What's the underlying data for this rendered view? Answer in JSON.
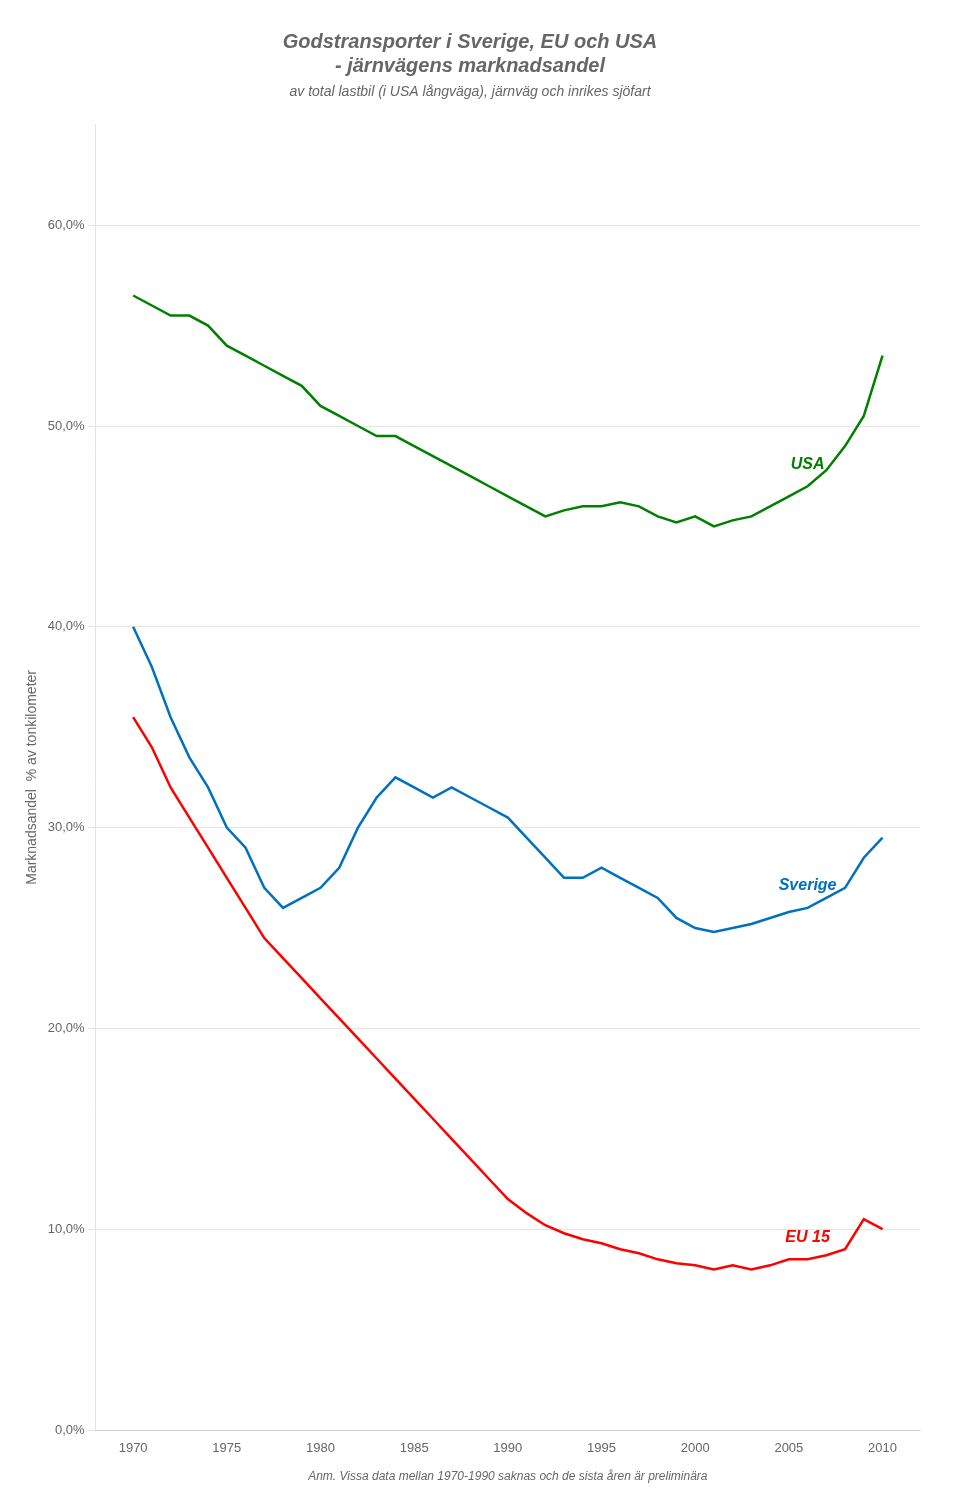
{
  "chart_data": {
    "type": "line",
    "title": [
      "Godstransporter i Sverige, EU och USA",
      "- järnvägens marknadsandel"
    ],
    "subtitle": "av total lastbil (i USA långväga), järnväg och inrikes sjöfart",
    "ylabel": "Marknadsandel  % av tonkilometer",
    "xlabel": "Anm. Vissa data mellan 1970-1990 saknas och de sista åren är preliminära",
    "x": [
      1970,
      1971,
      1972,
      1973,
      1974,
      1975,
      1976,
      1977,
      1978,
      1979,
      1980,
      1981,
      1982,
      1983,
      1984,
      1985,
      1986,
      1987,
      1988,
      1989,
      1990,
      1991,
      1992,
      1993,
      1994,
      1995,
      1996,
      1997,
      1998,
      1999,
      2000,
      2001,
      2002,
      2003,
      2004,
      2005,
      2006,
      2007,
      2008,
      2009,
      2010
    ],
    "series": [
      {
        "name": "USA",
        "color": "#008000",
        "values": [
          0.565,
          0.56,
          0.555,
          0.555,
          0.55,
          0.54,
          0.535,
          0.53,
          0.525,
          0.52,
          0.51,
          0.505,
          0.5,
          0.495,
          0.495,
          0.49,
          0.485,
          0.48,
          0.475,
          0.47,
          0.465,
          0.46,
          0.455,
          0.458,
          0.46,
          0.46,
          0.462,
          0.46,
          0.455,
          0.452,
          0.455,
          0.45,
          0.453,
          0.455,
          0.46,
          0.465,
          0.47,
          0.478,
          0.49,
          0.505,
          0.535
        ]
      },
      {
        "name": "Sverige",
        "color": "#0070C0",
        "values": [
          0.4,
          0.38,
          0.355,
          0.335,
          0.32,
          0.3,
          0.29,
          0.27,
          0.26,
          0.265,
          0.27,
          0.28,
          0.3,
          0.315,
          0.325,
          0.32,
          0.315,
          0.32,
          0.315,
          0.31,
          0.305,
          0.295,
          0.285,
          0.275,
          0.275,
          0.28,
          0.275,
          0.27,
          0.265,
          0.255,
          0.25,
          0.248,
          0.25,
          0.252,
          0.255,
          0.258,
          0.26,
          0.265,
          0.27,
          0.285,
          0.295
        ]
      },
      {
        "name": "EU 15",
        "color": "#FF0000",
        "values": [
          0.355,
          0.34,
          0.32,
          0.305,
          0.29,
          0.275,
          0.26,
          0.245,
          0.235,
          0.225,
          0.215,
          0.205,
          0.195,
          0.185,
          0.175,
          0.165,
          0.155,
          0.145,
          0.135,
          0.125,
          0.115,
          0.108,
          0.102,
          0.098,
          0.095,
          0.093,
          0.09,
          0.088,
          0.085,
          0.083,
          0.082,
          0.08,
          0.082,
          0.08,
          0.082,
          0.085,
          0.085,
          0.087,
          0.09,
          0.105,
          0.1
        ]
      }
    ],
    "xlim": [
      1968,
      2012
    ],
    "xticks": [
      1970,
      1975,
      1980,
      1985,
      1990,
      1995,
      2000,
      2005,
      2010
    ],
    "ylim": [
      0.0,
      0.65
    ],
    "yticks": [
      {
        "value": 0.0,
        "label": "0,0%"
      },
      {
        "value": 0.1,
        "label": "10,0%"
      },
      {
        "value": 0.2,
        "label": "20,0%"
      },
      {
        "value": 0.3,
        "label": "30,0%"
      },
      {
        "value": 0.4,
        "label": "40,0%"
      },
      {
        "value": 0.5,
        "label": "50,0%"
      },
      {
        "value": 0.6,
        "label": "60,0%"
      }
    ],
    "grid": "y"
  }
}
